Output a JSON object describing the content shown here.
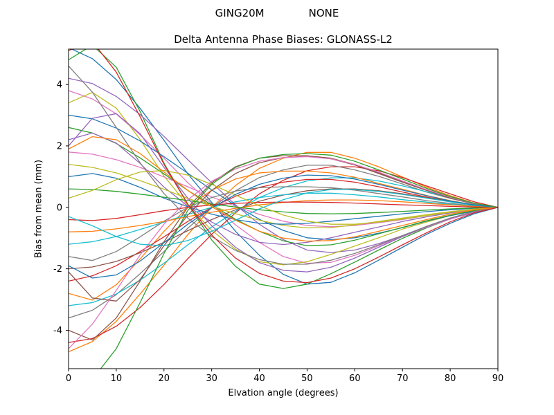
{
  "header": {
    "suptitle_left": "GING20M",
    "suptitle_right": "NONE"
  },
  "chart_data": {
    "type": "line",
    "title": "Delta Antenna Phase Biases: GLONASS-L2",
    "xlabel": "Elvation angle (degrees)",
    "ylabel": "Bias from mean (mm)",
    "xlim": [
      0,
      90
    ],
    "ylim": [
      -5.25,
      5.15
    ],
    "xticks": [
      0,
      10,
      20,
      30,
      40,
      50,
      60,
      70,
      80,
      90
    ],
    "yticks": [
      -4,
      -2,
      0,
      2,
      4
    ],
    "grid": false,
    "legend_position": "none",
    "axis_color": "#000000",
    "background_color": "#ffffff",
    "x": [
      0,
      5,
      10,
      15,
      20,
      25,
      30,
      35,
      40,
      45,
      50,
      55,
      60,
      65,
      70,
      75,
      80,
      85,
      90
    ],
    "series": [
      {
        "color": "#1f77b4",
        "values": [
          5.2,
          4.84,
          4.16,
          3.22,
          2.18,
          1.09,
          0.16,
          -0.78,
          -1.56,
          -2.18,
          -2.5,
          -2.44,
          -2.13,
          -1.72,
          -1.3,
          -0.88,
          -0.52,
          -0.21,
          0.0
        ]
      },
      {
        "color": "#ff7f0e",
        "values": [
          -4.7,
          -4.37,
          -3.71,
          -2.82,
          -1.88,
          -0.89,
          0.0,
          0.71,
          1.27,
          1.6,
          1.79,
          1.79,
          1.6,
          1.32,
          0.99,
          0.66,
          0.38,
          0.14,
          0.0
        ]
      },
      {
        "color": "#2ca02c",
        "values": [
          4.8,
          5.28,
          4.56,
          3.12,
          1.44,
          0.1,
          -1.06,
          -1.92,
          -2.5,
          -2.64,
          -2.5,
          -2.16,
          -1.78,
          -1.39,
          -1.01,
          -0.67,
          -0.38,
          -0.14,
          0.0
        ]
      },
      {
        "color": "#d62728",
        "values": [
          -4.4,
          -4.27,
          -3.87,
          -3.26,
          -2.51,
          -1.67,
          -0.88,
          -0.18,
          0.44,
          0.88,
          1.19,
          1.32,
          1.32,
          1.19,
          0.97,
          0.7,
          0.44,
          0.18,
          0.0
        ]
      },
      {
        "color": "#9467bd",
        "values": [
          4.2,
          4.03,
          3.61,
          3.02,
          2.31,
          1.55,
          0.8,
          0.08,
          -0.55,
          -1.05,
          -1.39,
          -1.47,
          -1.39,
          -1.18,
          -0.92,
          -0.63,
          -0.38,
          -0.17,
          0.0
        ]
      },
      {
        "color": "#8c564b",
        "values": [
          -4.0,
          -4.32,
          -3.6,
          -2.4,
          -1.12,
          0.0,
          0.8,
          1.32,
          1.6,
          1.68,
          1.68,
          1.6,
          1.4,
          1.12,
          0.84,
          0.56,
          0.32,
          0.12,
          0.0
        ]
      },
      {
        "color": "#e377c2",
        "values": [
          3.8,
          3.53,
          3.04,
          2.36,
          1.6,
          0.8,
          0.11,
          -0.57,
          -1.14,
          -1.6,
          -1.82,
          -1.79,
          -1.56,
          -1.25,
          -0.95,
          -0.65,
          -0.38,
          -0.15,
          0.0
        ]
      },
      {
        "color": "#7f7f7f",
        "values": [
          -3.6,
          -3.35,
          -2.84,
          -2.16,
          -1.44,
          -0.68,
          0.0,
          0.54,
          0.97,
          1.22,
          1.37,
          1.37,
          1.22,
          1.01,
          0.76,
          0.5,
          0.29,
          0.11,
          0.0
        ]
      },
      {
        "color": "#bcbd22",
        "values": [
          3.4,
          3.74,
          3.23,
          2.21,
          1.02,
          0.07,
          -0.75,
          -1.36,
          -1.77,
          -1.87,
          -1.77,
          -1.53,
          -1.26,
          -0.99,
          -0.71,
          -0.48,
          -0.27,
          -0.1,
          0.0
        ]
      },
      {
        "color": "#17becf",
        "values": [
          -3.2,
          -3.1,
          -2.82,
          -2.37,
          -1.82,
          -1.22,
          -0.64,
          -0.13,
          0.32,
          0.64,
          0.86,
          0.96,
          0.96,
          0.86,
          0.7,
          0.51,
          0.32,
          0.13,
          0.0
        ]
      },
      {
        "color": "#1f77b4",
        "values": [
          3.0,
          2.88,
          2.58,
          2.16,
          1.65,
          1.11,
          0.57,
          0.06,
          -0.39,
          -0.75,
          -0.99,
          -1.05,
          -0.99,
          -0.84,
          -0.66,
          -0.45,
          -0.27,
          -0.12,
          0.0
        ]
      },
      {
        "color": "#ff7f0e",
        "values": [
          -2.8,
          -3.02,
          -2.52,
          -1.68,
          -0.78,
          0.0,
          0.56,
          0.92,
          1.12,
          1.18,
          1.18,
          1.12,
          0.98,
          0.78,
          0.59,
          0.39,
          0.22,
          0.08,
          0.0
        ]
      },
      {
        "color": "#2ca02c",
        "values": [
          2.6,
          2.42,
          2.08,
          1.61,
          1.09,
          0.55,
          0.08,
          -0.39,
          -0.78,
          -1.09,
          -1.25,
          -1.22,
          -1.07,
          -0.86,
          -0.65,
          -0.44,
          -0.26,
          -0.1,
          0.0
        ]
      },
      {
        "color": "#d62728",
        "values": [
          -2.4,
          -2.23,
          -1.9,
          -1.44,
          -0.96,
          -0.46,
          0.0,
          0.36,
          0.65,
          0.82,
          0.91,
          0.91,
          0.82,
          0.67,
          0.5,
          0.34,
          0.19,
          0.07,
          0.0
        ]
      },
      {
        "color": "#9467bd",
        "values": [
          2.2,
          2.42,
          2.09,
          1.43,
          0.66,
          0.04,
          -0.48,
          -0.88,
          -1.14,
          -1.21,
          -1.14,
          -0.99,
          -0.81,
          -0.64,
          -0.46,
          -0.31,
          -0.18,
          -0.07,
          0.0
        ]
      },
      {
        "color": "#8c564b",
        "values": [
          -2.0,
          -1.94,
          -1.76,
          -1.48,
          -1.14,
          -0.76,
          -0.4,
          -0.08,
          0.2,
          0.4,
          0.54,
          0.6,
          0.6,
          0.54,
          0.44,
          0.32,
          0.2,
          0.08,
          0.0
        ]
      },
      {
        "color": "#e377c2",
        "values": [
          1.8,
          1.73,
          1.55,
          1.3,
          0.99,
          0.67,
          0.34,
          0.04,
          -0.23,
          -0.45,
          -0.59,
          -0.63,
          -0.59,
          -0.5,
          -0.4,
          -0.27,
          -0.16,
          -0.07,
          0.0
        ]
      },
      {
        "color": "#7f7f7f",
        "values": [
          -1.6,
          -1.73,
          -1.44,
          -0.96,
          -0.45,
          0.0,
          0.32,
          0.53,
          0.64,
          0.67,
          0.67,
          0.64,
          0.56,
          0.45,
          0.34,
          0.22,
          0.13,
          0.05,
          0.0
        ]
      },
      {
        "color": "#bcbd22",
        "values": [
          1.4,
          1.3,
          1.12,
          0.87,
          0.59,
          0.29,
          0.04,
          -0.21,
          -0.42,
          -0.59,
          -0.67,
          -0.66,
          -0.57,
          -0.46,
          -0.35,
          -0.24,
          -0.14,
          -0.06,
          0.0
        ]
      },
      {
        "color": "#17becf",
        "values": [
          -1.2,
          -1.12,
          -0.95,
          -0.72,
          -0.48,
          -0.23,
          0.0,
          0.18,
          0.32,
          0.41,
          0.46,
          0.46,
          0.41,
          0.34,
          0.25,
          0.17,
          0.1,
          0.04,
          0.0
        ]
      },
      {
        "color": "#1f77b4",
        "values": [
          1.0,
          1.1,
          0.95,
          0.65,
          0.3,
          0.02,
          -0.22,
          -0.4,
          -0.52,
          -0.55,
          -0.52,
          -0.45,
          -0.37,
          -0.29,
          -0.21,
          -0.14,
          -0.08,
          -0.03,
          0.0
        ]
      },
      {
        "color": "#ff7f0e",
        "values": [
          -0.8,
          -0.78,
          -0.7,
          -0.59,
          -0.46,
          -0.3,
          -0.16,
          -0.03,
          0.08,
          0.16,
          0.22,
          0.24,
          0.24,
          0.22,
          0.18,
          0.13,
          0.08,
          0.03,
          0.0
        ]
      },
      {
        "color": "#2ca02c",
        "values": [
          0.6,
          0.58,
          0.52,
          0.43,
          0.33,
          0.22,
          0.11,
          0.01,
          -0.08,
          -0.15,
          -0.2,
          -0.21,
          -0.2,
          -0.17,
          -0.13,
          -0.09,
          -0.05,
          -0.02,
          0.0
        ]
      },
      {
        "color": "#d62728",
        "values": [
          -0.4,
          -0.43,
          -0.36,
          -0.24,
          -0.11,
          0.0,
          0.08,
          0.13,
          0.16,
          0.17,
          0.17,
          0.16,
          0.14,
          0.11,
          0.08,
          0.06,
          0.03,
          0.01,
          0.0
        ]
      },
      {
        "color": "#9467bd",
        "values": [
          2.0,
          2.9,
          3.05,
          2.4,
          1.3,
          0.3,
          -0.6,
          -1.3,
          -1.8,
          -2.05,
          -2.1,
          -1.95,
          -1.65,
          -1.3,
          -0.95,
          -0.63,
          -0.36,
          -0.14,
          0.0
        ]
      },
      {
        "color": "#8c564b",
        "values": [
          -2.1,
          -2.95,
          -3.05,
          -2.35,
          -1.25,
          -0.25,
          0.55,
          1.1,
          1.45,
          1.62,
          1.66,
          1.58,
          1.38,
          1.1,
          0.82,
          0.55,
          0.31,
          0.12,
          0.0
        ]
      },
      {
        "color": "#e377c2",
        "values": [
          -4.6,
          -3.8,
          -2.7,
          -1.55,
          -0.55,
          0.25,
          0.85,
          1.25,
          1.5,
          1.62,
          1.65,
          1.58,
          1.4,
          1.15,
          0.86,
          0.58,
          0.33,
          0.12,
          0.0
        ]
      },
      {
        "color": "#7f7f7f",
        "values": [
          4.6,
          3.75,
          2.6,
          1.45,
          0.45,
          -0.35,
          -0.95,
          -1.4,
          -1.7,
          -1.85,
          -1.85,
          -1.72,
          -1.5,
          -1.22,
          -0.92,
          -0.62,
          -0.35,
          -0.13,
          0.0
        ]
      },
      {
        "color": "#bcbd22",
        "values": [
          0.3,
          0.55,
          0.9,
          1.15,
          1.2,
          1.05,
          0.75,
          0.4,
          0.05,
          -0.25,
          -0.45,
          -0.55,
          -0.55,
          -0.48,
          -0.38,
          -0.27,
          -0.16,
          -0.06,
          0.0
        ]
      },
      {
        "color": "#17becf",
        "values": [
          -0.3,
          -0.6,
          -0.95,
          -1.2,
          -1.25,
          -1.08,
          -0.78,
          -0.42,
          -0.05,
          0.25,
          0.47,
          0.58,
          0.58,
          0.52,
          0.42,
          0.3,
          0.18,
          0.07,
          0.0
        ]
      },
      {
        "color": "#1f77b4",
        "values": [
          -1.9,
          -2.3,
          -2.2,
          -1.75,
          -1.15,
          -0.55,
          -0.02,
          0.42,
          0.75,
          0.95,
          1.05,
          1.03,
          0.92,
          0.75,
          0.56,
          0.38,
          0.21,
          0.08,
          0.0
        ]
      },
      {
        "color": "#ff7f0e",
        "values": [
          1.9,
          2.3,
          2.2,
          1.75,
          1.15,
          0.55,
          0.02,
          -0.42,
          -0.78,
          -1.0,
          -1.1,
          -1.08,
          -0.96,
          -0.78,
          -0.59,
          -0.4,
          -0.22,
          -0.08,
          0.0
        ]
      },
      {
        "color": "#2ca02c",
        "values": [
          -5.3,
          -5.6,
          -4.6,
          -3.1,
          -1.5,
          -0.1,
          0.75,
          1.3,
          1.6,
          1.72,
          1.75,
          1.7,
          1.5,
          1.22,
          0.92,
          0.62,
          0.35,
          0.13,
          0.0
        ]
      },
      {
        "color": "#d62728",
        "values": [
          5.1,
          5.4,
          4.4,
          2.95,
          1.4,
          0.1,
          -0.9,
          -1.65,
          -2.15,
          -2.4,
          -2.45,
          -2.3,
          -2.0,
          -1.62,
          -1.22,
          -0.83,
          -0.47,
          -0.18,
          0.0
        ]
      }
    ]
  }
}
